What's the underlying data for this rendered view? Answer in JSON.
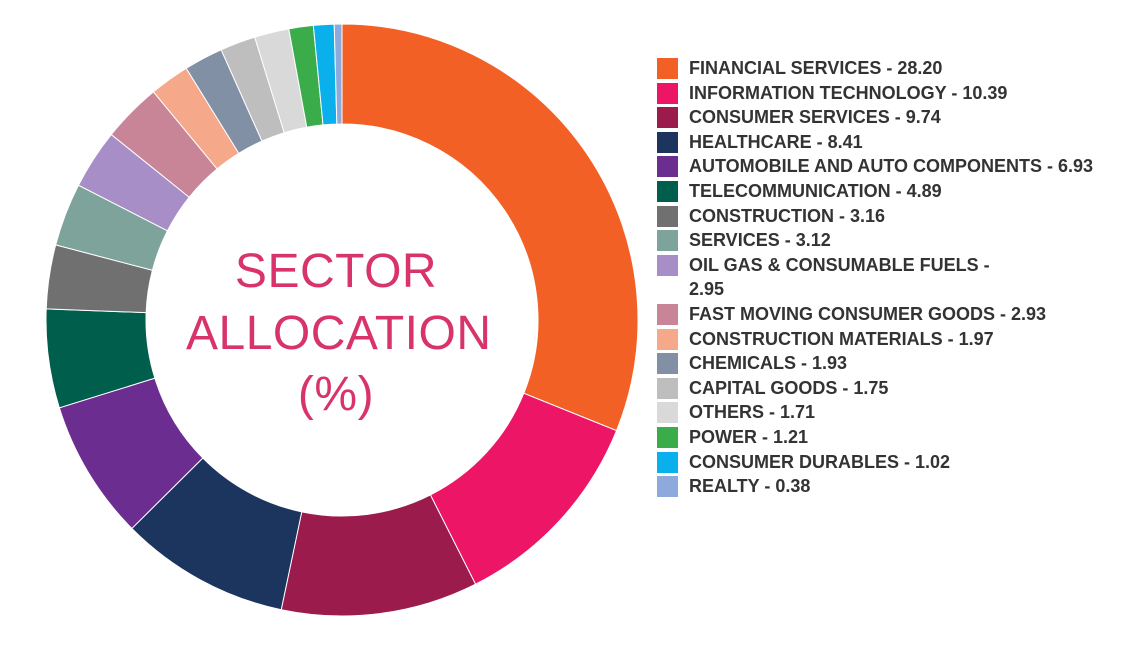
{
  "chart_data": {
    "type": "pie",
    "donut": true,
    "title_lines": [
      "SECTOR",
      "ALLOCATION",
      "(%)"
    ],
    "legend_position": "right",
    "slices": [
      {
        "label": "FINANCIAL SERVICES - 28.20",
        "value": 28.2,
        "color": "#f26026"
      },
      {
        "label": "INFORMATION TECHNOLOGY - 10.39",
        "value": 10.39,
        "color": "#ec1566"
      },
      {
        "label": "CONSUMER SERVICES - 9.74",
        "value": 9.74,
        "color": "#9b1b4d"
      },
      {
        "label": "HEALTHCARE - 8.41",
        "value": 8.41,
        "color": "#1c355e"
      },
      {
        "label": "AUTOMOBILE AND AUTO COMPONENTS - 6.93",
        "value": 6.93,
        "color": "#6c2d91"
      },
      {
        "label": "TELECOMMUNICATION - 4.89",
        "value": 4.89,
        "color": "#005e4d"
      },
      {
        "label": "CONSTRUCTION - 3.16",
        "value": 3.16,
        "color": "#707070"
      },
      {
        "label": "SERVICES - 3.12",
        "value": 3.12,
        "color": "#7da39b"
      },
      {
        "label": "OIL GAS & CONSUMABLE FUELS - 2.95",
        "value": 2.95,
        "color": "#a78ec6"
      },
      {
        "label": "FAST MOVING CONSUMER GOODS - 2.93",
        "value": 2.93,
        "color": "#c98598"
      },
      {
        "label": "CONSTRUCTION MATERIALS - 1.97",
        "value": 1.97,
        "color": "#f6a88a"
      },
      {
        "label": "CHEMICALS - 1.93",
        "value": 1.93,
        "color": "#8290a6"
      },
      {
        "label": "CAPITAL GOODS - 1.75",
        "value": 1.75,
        "color": "#bebebe"
      },
      {
        "label": "OTHERS - 1.71",
        "value": 1.71,
        "color": "#d9d9d9"
      },
      {
        "label": "POWER - 1.21",
        "value": 1.21,
        "color": "#3aac4a"
      },
      {
        "label": "CONSUMER DURABLES - 1.02",
        "value": 1.02,
        "color": "#0ab0ec"
      },
      {
        "label": "REALTY - 0.38",
        "value": 0.38,
        "color": "#8ea9db"
      }
    ]
  }
}
